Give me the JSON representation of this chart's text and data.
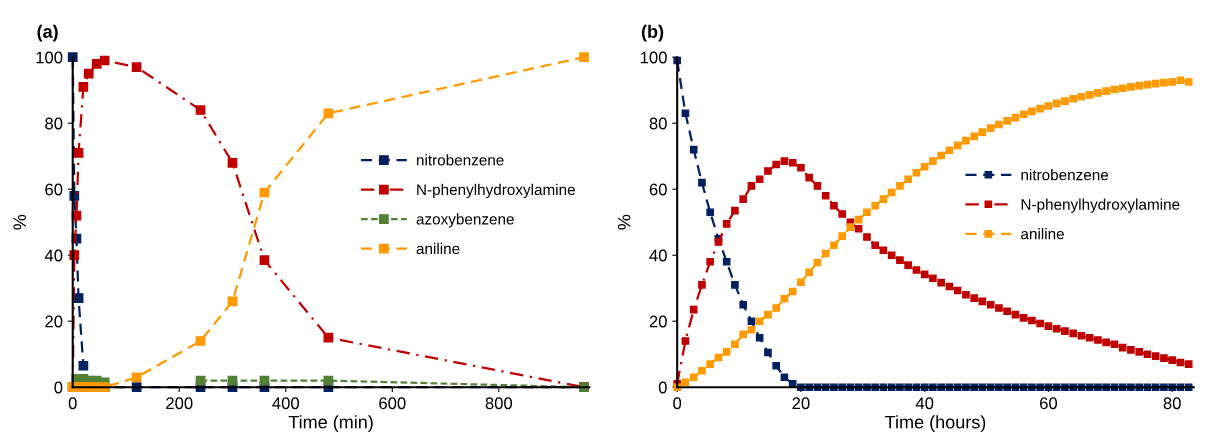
{
  "chart_data": [
    {
      "type": "line",
      "title": "(a)",
      "xlabel": "Time (min)",
      "ylabel": "%",
      "marker": "square",
      "legend": "right",
      "grid": false,
      "xlim": [
        0,
        970
      ],
      "xticks": [
        0,
        200,
        400,
        600,
        800
      ],
      "ylim": [
        0,
        100
      ],
      "yticks": [
        0,
        20,
        40,
        60,
        80,
        100
      ],
      "x": [
        0,
        3,
        7,
        11,
        20,
        30,
        45,
        60,
        120,
        240,
        300,
        360,
        480,
        960
      ],
      "series": [
        {
          "name": "nitrobenzene",
          "color": "#002060",
          "line_style": "dashed",
          "values": [
            100,
            58,
            45,
            27,
            6.5,
            null,
            0.5,
            0,
            0,
            0,
            0,
            0,
            0,
            0
          ]
        },
        {
          "name": "N-phenylhydroxylamine",
          "color": "#c00000",
          "line_style": "dashdot",
          "values": [
            0,
            40,
            52,
            71,
            91,
            95,
            98,
            99,
            97,
            84,
            68,
            38.5,
            15,
            0
          ]
        },
        {
          "name": "azoxybenzene",
          "color": "#538135",
          "line_style": "dotted",
          "values": [
            0,
            null,
            2.5,
            2.5,
            2.5,
            2,
            2,
            1.5,
            null,
            2,
            2,
            2,
            2,
            0
          ]
        },
        {
          "name": "aniline",
          "color": "#ff9900",
          "line_style": "dashed",
          "values": [
            0,
            0,
            0,
            0,
            0,
            0,
            0,
            0,
            3,
            14,
            26,
            59,
            83,
            100
          ]
        }
      ]
    },
    {
      "type": "line",
      "title": "(b)",
      "xlabel": "Time (hours)",
      "ylabel": "%",
      "marker": "square",
      "legend": "right",
      "grid": false,
      "xlim": [
        0,
        83.5
      ],
      "xticks": [
        0,
        20,
        40,
        60,
        80
      ],
      "ylim": [
        0,
        100
      ],
      "yticks": [
        0,
        20,
        40,
        60,
        80,
        100
      ],
      "x": [
        0,
        1.33,
        2.67,
        4,
        5.33,
        6.67,
        8,
        9.33,
        10.67,
        12,
        13.33,
        14.67,
        16,
        17.33,
        18.67,
        20,
        21.33,
        22.67,
        24,
        25.33,
        26.67,
        28,
        29.33,
        30.67,
        32,
        33.33,
        34.67,
        36,
        37.33,
        38.67,
        40,
        41.33,
        42.67,
        44,
        45.33,
        46.67,
        48,
        49.33,
        50.67,
        52,
        53.33,
        54.67,
        56,
        57.33,
        58.67,
        60,
        61.33,
        62.67,
        64,
        65.33,
        66.67,
        68,
        69.33,
        70.67,
        72,
        73.33,
        74.67,
        76,
        77.33,
        78.67,
        80,
        81.33,
        82.67
      ],
      "series": [
        {
          "name": "nitrobenzene",
          "color": "#002060",
          "line_style": "dashed",
          "values": [
            99,
            83,
            72,
            62,
            53,
            45,
            38,
            31,
            25,
            20,
            15,
            10.5,
            6.5,
            3,
            1,
            0,
            0,
            0,
            0,
            0,
            0,
            0,
            0,
            0,
            0,
            0,
            0,
            0,
            0,
            0,
            0,
            0,
            0,
            0,
            0,
            0,
            0,
            0,
            0,
            0,
            0,
            0,
            0,
            0,
            0,
            0,
            0,
            0,
            0,
            0,
            0,
            0,
            0,
            0,
            0,
            0,
            0,
            0,
            0,
            0,
            0,
            0,
            0
          ]
        },
        {
          "name": "N-phenylhydroxylamine",
          "color": "#c00000",
          "line_style": "dashdot",
          "values": [
            1,
            14,
            23.5,
            31,
            38,
            44,
            49.5,
            53.5,
            57,
            61,
            63,
            65.5,
            67.5,
            68.5,
            68,
            66.5,
            63.5,
            61,
            58,
            55,
            52.5,
            50,
            48,
            45.5,
            43,
            41.5,
            40,
            38.5,
            37,
            35.5,
            34.2,
            33,
            31.7,
            30.5,
            29.3,
            28,
            27,
            26,
            25,
            24,
            23,
            22,
            21,
            20.2,
            19.3,
            18.5,
            17.7,
            17,
            16.3,
            15.6,
            15,
            14.3,
            13.6,
            13,
            12,
            11.3,
            10.7,
            10,
            9.4,
            8.8,
            8.2,
            7.5,
            7
          ]
        },
        {
          "name": "aniline",
          "color": "#ff9900",
          "line_style": "dashed",
          "values": [
            0,
            1.5,
            3,
            5,
            7,
            9,
            10.7,
            13,
            16,
            17.4,
            20,
            22,
            24,
            26.8,
            29,
            31.8,
            34.8,
            37.8,
            40.5,
            43,
            45.8,
            48.5,
            50.8,
            53,
            55,
            57,
            59,
            61,
            63,
            65,
            66.8,
            68.5,
            70.2,
            71.8,
            73.3,
            74.7,
            76,
            77.3,
            78.5,
            79.6,
            80.7,
            81.7,
            82.7,
            83.6,
            84.4,
            85.2,
            86,
            86.7,
            87.4,
            88,
            88.6,
            89.2,
            89.7,
            90.2,
            90.6,
            91,
            91.4,
            91.7,
            92,
            92.3,
            92.5,
            93,
            92.5
          ]
        }
      ]
    }
  ]
}
